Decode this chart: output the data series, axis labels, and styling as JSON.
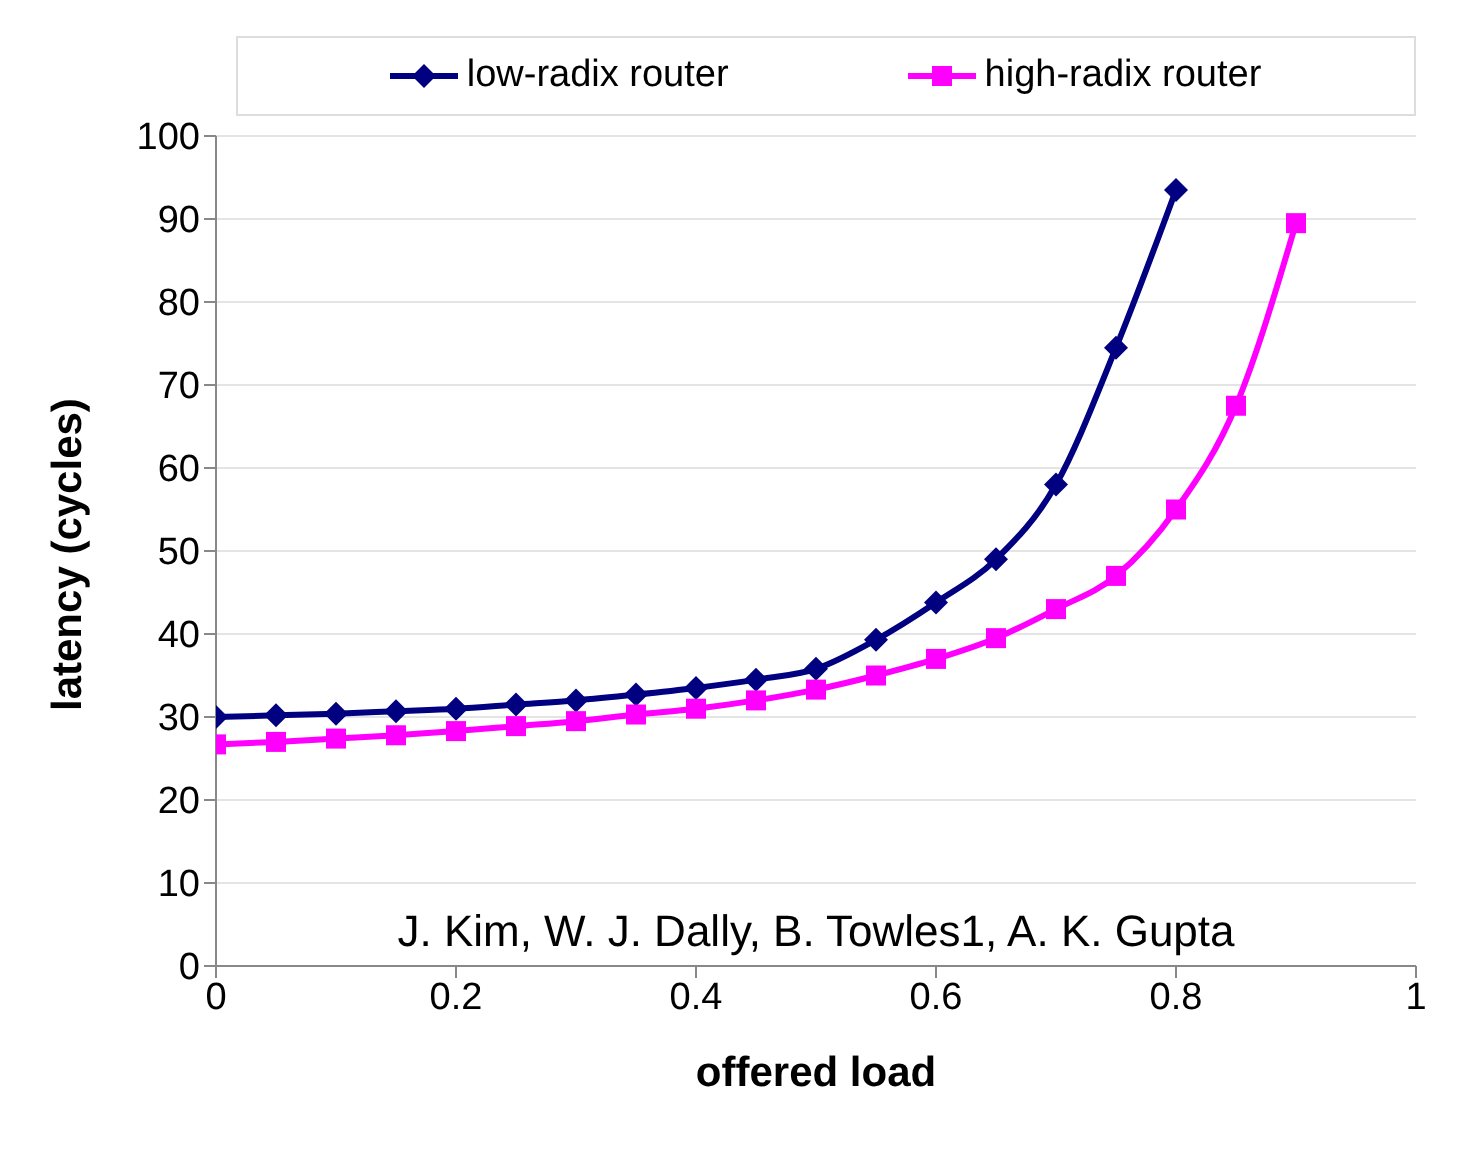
{
  "chart_data": {
    "type": "line",
    "xlabel": "offered load",
    "ylabel": "latency (cycles)",
    "x": [
      0,
      0.05,
      0.1,
      0.15,
      0.2,
      0.25,
      0.3,
      0.35,
      0.4,
      0.45,
      0.5,
      0.55,
      0.6,
      0.65,
      0.7,
      0.75,
      0.8,
      0.85,
      0.9
    ],
    "series": [
      {
        "name": "low-radix router",
        "color": "#000080",
        "marker": "diamond",
        "values": [
          30,
          30.2,
          30.4,
          30.7,
          31,
          31.5,
          32,
          32.7,
          33.5,
          34.5,
          35.8,
          39.3,
          43.8,
          49,
          58,
          74.5,
          93.5,
          null,
          null
        ]
      },
      {
        "name": "high-radix router",
        "color": "#ff00ff",
        "marker": "square",
        "values": [
          26.7,
          27,
          27.4,
          27.8,
          28.3,
          28.9,
          29.5,
          30.3,
          31,
          32,
          33.3,
          35,
          37,
          39.5,
          43,
          47,
          55,
          67.5,
          89.5
        ]
      }
    ],
    "xlim": [
      0,
      1
    ],
    "xticks": [
      0,
      0.2,
      0.4,
      0.6,
      0.8,
      1
    ],
    "ylim": [
      0,
      100
    ],
    "yticks": [
      0,
      10,
      20,
      30,
      40,
      50,
      60,
      70,
      80,
      90,
      100
    ],
    "grid": "y",
    "legend": "top",
    "annotations": [
      "J. Kim, W. J. Dally, B. Towles1, A. K. Gupta"
    ]
  }
}
